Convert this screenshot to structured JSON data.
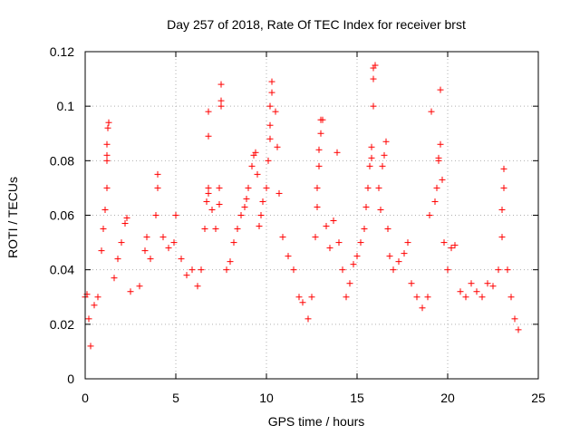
{
  "chart_data": {
    "type": "scatter",
    "title": "Day 257 of 2018, Rate Of TEC Index for receiver brst",
    "xlabel": "GPS time / hours",
    "ylabel": "ROTI / TECUs",
    "xlim": [
      0,
      25
    ],
    "ylim": [
      0,
      0.12
    ],
    "x_ticks": [
      "0",
      "5",
      "10",
      "15",
      "20",
      "25"
    ],
    "y_ticks": [
      "0",
      "0.02",
      "0.04",
      "0.06",
      "0.08",
      "0.1",
      "0.12"
    ],
    "grid": true,
    "marker": "plus",
    "colors": {
      "series": "#ff0000"
    },
    "series": [
      {
        "points": [
          [
            0.0,
            0.03
          ],
          [
            0.1,
            0.031
          ],
          [
            0.2,
            0.022
          ],
          [
            0.3,
            0.012
          ],
          [
            0.5,
            0.027
          ],
          [
            0.7,
            0.03
          ],
          [
            0.9,
            0.047
          ],
          [
            1.0,
            0.055
          ],
          [
            1.1,
            0.062
          ],
          [
            1.2,
            0.07
          ],
          [
            1.2,
            0.08
          ],
          [
            1.2,
            0.082
          ],
          [
            1.2,
            0.086
          ],
          [
            1.25,
            0.092
          ],
          [
            1.3,
            0.094
          ],
          [
            1.6,
            0.037
          ],
          [
            1.8,
            0.044
          ],
          [
            2.0,
            0.05
          ],
          [
            2.2,
            0.057
          ],
          [
            2.3,
            0.059
          ],
          [
            2.5,
            0.032
          ],
          [
            3.0,
            0.034
          ],
          [
            3.3,
            0.047
          ],
          [
            3.4,
            0.052
          ],
          [
            3.6,
            0.044
          ],
          [
            3.9,
            0.06
          ],
          [
            4.0,
            0.07
          ],
          [
            4.0,
            0.075
          ],
          [
            4.3,
            0.052
          ],
          [
            4.6,
            0.048
          ],
          [
            4.9,
            0.05
          ],
          [
            5.0,
            0.06
          ],
          [
            5.3,
            0.044
          ],
          [
            5.6,
            0.038
          ],
          [
            5.9,
            0.04
          ],
          [
            6.2,
            0.034
          ],
          [
            6.4,
            0.04
          ],
          [
            6.6,
            0.055
          ],
          [
            6.7,
            0.065
          ],
          [
            6.8,
            0.068
          ],
          [
            6.8,
            0.07
          ],
          [
            6.8,
            0.089
          ],
          [
            6.8,
            0.098
          ],
          [
            7.0,
            0.062
          ],
          [
            7.2,
            0.055
          ],
          [
            7.4,
            0.064
          ],
          [
            7.4,
            0.07
          ],
          [
            7.5,
            0.1
          ],
          [
            7.5,
            0.102
          ],
          [
            7.5,
            0.108
          ],
          [
            7.8,
            0.04
          ],
          [
            8.0,
            0.043
          ],
          [
            8.2,
            0.05
          ],
          [
            8.4,
            0.055
          ],
          [
            8.6,
            0.06
          ],
          [
            8.8,
            0.063
          ],
          [
            8.9,
            0.066
          ],
          [
            9.0,
            0.07
          ],
          [
            9.2,
            0.078
          ],
          [
            9.3,
            0.082
          ],
          [
            9.4,
            0.083
          ],
          [
            9.5,
            0.075
          ],
          [
            9.6,
            0.056
          ],
          [
            9.7,
            0.06
          ],
          [
            9.8,
            0.065
          ],
          [
            10.0,
            0.07
          ],
          [
            10.1,
            0.08
          ],
          [
            10.2,
            0.088
          ],
          [
            10.2,
            0.093
          ],
          [
            10.2,
            0.1
          ],
          [
            10.3,
            0.105
          ],
          [
            10.3,
            0.109
          ],
          [
            10.5,
            0.098
          ],
          [
            10.6,
            0.085
          ],
          [
            10.7,
            0.068
          ],
          [
            10.9,
            0.052
          ],
          [
            11.2,
            0.045
          ],
          [
            11.5,
            0.04
          ],
          [
            11.8,
            0.03
          ],
          [
            12.0,
            0.028
          ],
          [
            12.3,
            0.022
          ],
          [
            12.5,
            0.03
          ],
          [
            12.7,
            0.052
          ],
          [
            12.8,
            0.063
          ],
          [
            12.8,
            0.07
          ],
          [
            12.9,
            0.078
          ],
          [
            12.9,
            0.084
          ],
          [
            13.0,
            0.09
          ],
          [
            13.0,
            0.095
          ],
          [
            13.1,
            0.095
          ],
          [
            13.3,
            0.056
          ],
          [
            13.5,
            0.048
          ],
          [
            13.7,
            0.058
          ],
          [
            13.9,
            0.083
          ],
          [
            14.0,
            0.05
          ],
          [
            14.2,
            0.04
          ],
          [
            14.4,
            0.03
          ],
          [
            14.6,
            0.035
          ],
          [
            14.8,
            0.042
          ],
          [
            15.0,
            0.045
          ],
          [
            15.2,
            0.05
          ],
          [
            15.4,
            0.055
          ],
          [
            15.5,
            0.063
          ],
          [
            15.6,
            0.07
          ],
          [
            15.7,
            0.078
          ],
          [
            15.8,
            0.081
          ],
          [
            15.8,
            0.085
          ],
          [
            15.9,
            0.1
          ],
          [
            15.9,
            0.11
          ],
          [
            15.9,
            0.114
          ],
          [
            16.0,
            0.115
          ],
          [
            16.2,
            0.07
          ],
          [
            16.3,
            0.062
          ],
          [
            16.4,
            0.078
          ],
          [
            16.5,
            0.082
          ],
          [
            16.6,
            0.087
          ],
          [
            16.7,
            0.055
          ],
          [
            16.8,
            0.045
          ],
          [
            17.0,
            0.04
          ],
          [
            17.3,
            0.043
          ],
          [
            17.6,
            0.046
          ],
          [
            17.8,
            0.05
          ],
          [
            18.0,
            0.035
          ],
          [
            18.3,
            0.03
          ],
          [
            18.6,
            0.026
          ],
          [
            18.9,
            0.03
          ],
          [
            19.0,
            0.06
          ],
          [
            19.1,
            0.098
          ],
          [
            19.3,
            0.065
          ],
          [
            19.4,
            0.07
          ],
          [
            19.5,
            0.08
          ],
          [
            19.5,
            0.081
          ],
          [
            19.6,
            0.086
          ],
          [
            19.6,
            0.106
          ],
          [
            19.7,
            0.073
          ],
          [
            19.8,
            0.05
          ],
          [
            20.0,
            0.04
          ],
          [
            20.2,
            0.048
          ],
          [
            20.4,
            0.049
          ],
          [
            20.7,
            0.032
          ],
          [
            21.0,
            0.03
          ],
          [
            21.3,
            0.035
          ],
          [
            21.6,
            0.032
          ],
          [
            21.9,
            0.03
          ],
          [
            22.2,
            0.035
          ],
          [
            22.5,
            0.034
          ],
          [
            22.8,
            0.04
          ],
          [
            23.0,
            0.052
          ],
          [
            23.0,
            0.062
          ],
          [
            23.1,
            0.07
          ],
          [
            23.1,
            0.077
          ],
          [
            23.3,
            0.04
          ],
          [
            23.5,
            0.03
          ],
          [
            23.7,
            0.022
          ],
          [
            23.9,
            0.018
          ]
        ]
      }
    ]
  }
}
